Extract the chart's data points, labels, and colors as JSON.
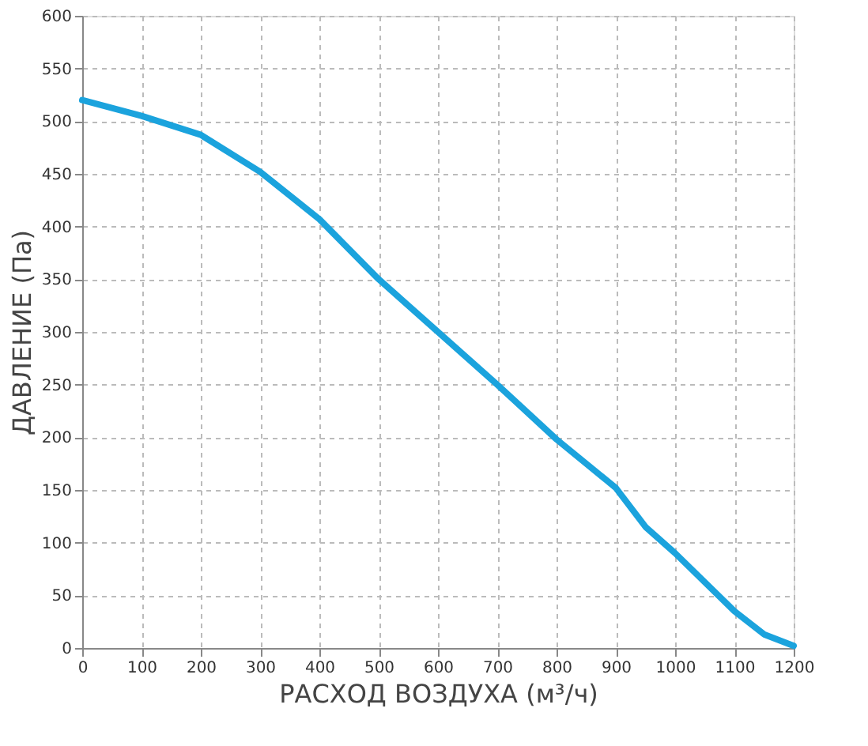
{
  "chart_data": {
    "type": "line",
    "xlabel": "РАСХОД ВОЗДУХА (м³/ч)",
    "ylabel": "ДАВЛЕНИЕ  (Па)",
    "x": [
      0,
      100,
      200,
      300,
      400,
      500,
      600,
      700,
      800,
      900,
      950,
      1000,
      1100,
      1150,
      1200
    ],
    "series": [
      {
        "color": "#1ba3dd",
        "values": [
          520,
          505,
          487,
          452,
          407,
          350,
          300,
          250,
          198,
          152,
          115,
          90,
          35,
          13,
          2
        ]
      }
    ],
    "xlim": [
      0,
      1200
    ],
    "xticks": [
      0,
      100,
      200,
      300,
      400,
      500,
      600,
      700,
      800,
      900,
      1000,
      1100,
      1200
    ],
    "ylim": [
      0,
      600
    ],
    "yticks": [
      0,
      50,
      100,
      150,
      200,
      250,
      300,
      350,
      400,
      450,
      500,
      550,
      600
    ],
    "grid": true,
    "line_style": "solid",
    "marker": "none"
  }
}
